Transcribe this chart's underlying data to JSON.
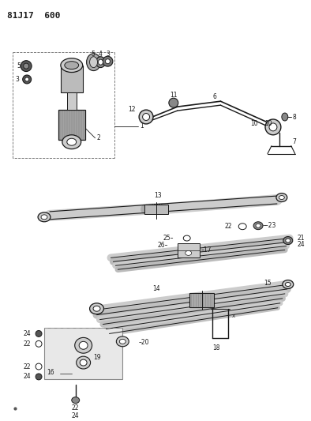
{
  "title": "81J17  600",
  "bg_color": "#ffffff",
  "line_color": "#1a1a1a",
  "fig_width": 3.94,
  "fig_height": 5.33,
  "dpi": 100
}
